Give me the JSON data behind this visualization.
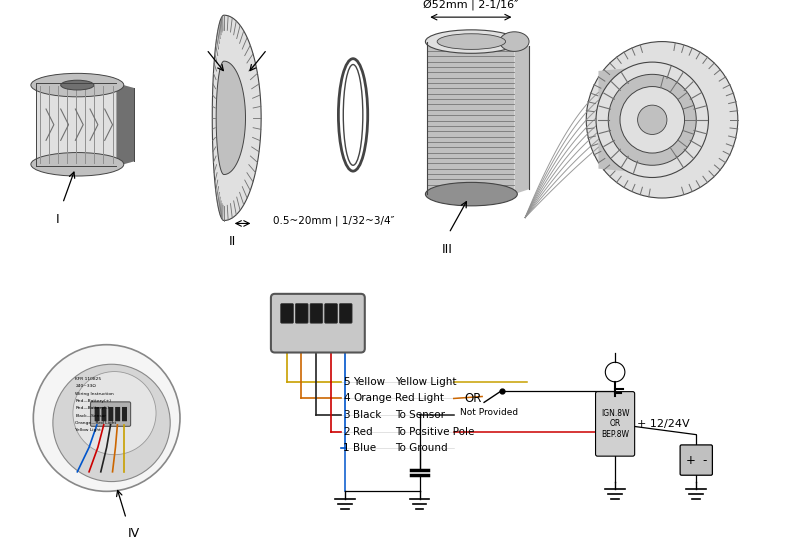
{
  "bg_color": "#ffffff",
  "fig_width": 7.99,
  "fig_height": 5.51,
  "dimension_text1": "Ø52mm | 2-1/16″",
  "dimension_text2": "0.5~20mm | 1/32~3/4″",
  "wire_labels": [
    {
      "num": "5",
      "color_name": "Yellow",
      "desc": "Yellow Light",
      "wire_color": "#c8a000"
    },
    {
      "num": "4",
      "color_name": "Orange",
      "desc": "Red Light",
      "wire_color": "#cc6600"
    },
    {
      "num": "3",
      "color_name": "Black",
      "desc": "To Sensor",
      "wire_color": "#222222"
    },
    {
      "num": "2",
      "color_name": "Red",
      "desc": "To Positive Pole",
      "wire_color": "#cc0000"
    },
    {
      "num": "1",
      "color_name": "Blue",
      "desc": "To Ground",
      "wire_color": "#0055cc"
    }
  ],
  "or_text": "OR",
  "not_provided_text": "Not Provided",
  "voltage_text": "+ 12/24V",
  "ignition_text": "IGN.8W\nOR\nBEP.8W",
  "label_I": "I",
  "label_II": "II",
  "label_III": "III",
  "label_IV": "IV",
  "gray_light": "#e0e0e0",
  "gray_mid": "#c0c0c0",
  "gray_dark": "#909090",
  "gray_darker": "#707070",
  "line_col": "#444444"
}
